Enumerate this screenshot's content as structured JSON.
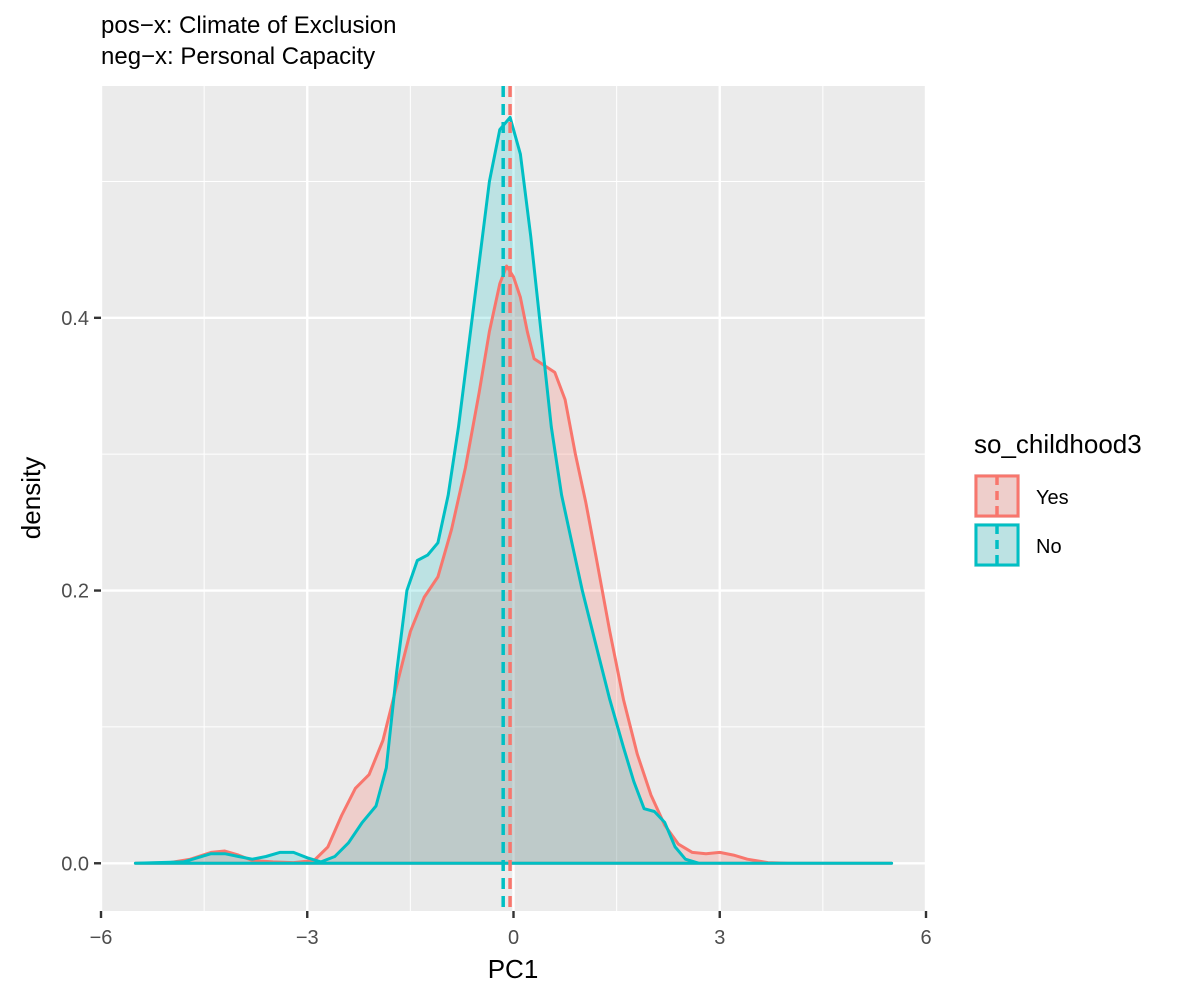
{
  "chart_data": {
    "type": "area",
    "title_lines": [
      "pos−x: Climate of Exclusion",
      "neg−x: Personal Capacity"
    ],
    "xlabel": "PC1",
    "ylabel": "density",
    "xlim": [
      -6,
      6
    ],
    "ylim": [
      -0.035,
      0.57
    ],
    "x_ticks": [
      -6,
      -3,
      0,
      3,
      6
    ],
    "x_tick_labels": [
      "−6",
      "−3",
      "0",
      "3",
      "6"
    ],
    "y_ticks": [
      0.0,
      0.2,
      0.4
    ],
    "y_tick_labels": [
      "0.0",
      "0.2",
      "0.4"
    ],
    "grid": true,
    "legend": {
      "title": "so_childhood3",
      "placement": "right",
      "entries": [
        "Yes",
        "No"
      ]
    },
    "series": [
      {
        "name": "Yes",
        "color": "#F8766D",
        "fill": "rgba(248,118,109,0.25)",
        "mean": -0.05,
        "points": [
          [
            -5.5,
            0
          ],
          [
            -5.0,
            0.0005
          ],
          [
            -4.7,
            0.003
          ],
          [
            -4.4,
            0.008
          ],
          [
            -4.2,
            0.009
          ],
          [
            -4.0,
            0.006
          ],
          [
            -3.8,
            0.002
          ],
          [
            -3.5,
            0.001
          ],
          [
            -3.2,
            0.0005
          ],
          [
            -2.9,
            0.002
          ],
          [
            -2.7,
            0.012
          ],
          [
            -2.5,
            0.035
          ],
          [
            -2.3,
            0.055
          ],
          [
            -2.1,
            0.065
          ],
          [
            -1.9,
            0.09
          ],
          [
            -1.7,
            0.13
          ],
          [
            -1.5,
            0.17
          ],
          [
            -1.3,
            0.195
          ],
          [
            -1.1,
            0.21
          ],
          [
            -0.9,
            0.245
          ],
          [
            -0.7,
            0.29
          ],
          [
            -0.5,
            0.345
          ],
          [
            -0.35,
            0.39
          ],
          [
            -0.2,
            0.425
          ],
          [
            -0.1,
            0.438
          ],
          [
            0.0,
            0.43
          ],
          [
            0.1,
            0.415
          ],
          [
            0.2,
            0.39
          ],
          [
            0.3,
            0.37
          ],
          [
            0.45,
            0.365
          ],
          [
            0.6,
            0.36
          ],
          [
            0.75,
            0.34
          ],
          [
            0.9,
            0.3
          ],
          [
            1.05,
            0.265
          ],
          [
            1.2,
            0.225
          ],
          [
            1.4,
            0.17
          ],
          [
            1.6,
            0.12
          ],
          [
            1.8,
            0.08
          ],
          [
            2.0,
            0.05
          ],
          [
            2.2,
            0.028
          ],
          [
            2.4,
            0.014
          ],
          [
            2.6,
            0.008
          ],
          [
            2.8,
            0.007
          ],
          [
            3.0,
            0.008
          ],
          [
            3.2,
            0.006
          ],
          [
            3.4,
            0.003
          ],
          [
            3.7,
            0.0005
          ],
          [
            4.0,
            0
          ],
          [
            5.5,
            0
          ]
        ]
      },
      {
        "name": "No",
        "color": "#00BFC4",
        "fill": "rgba(0,191,196,0.2)",
        "mean": -0.15,
        "points": [
          [
            -5.5,
            0
          ],
          [
            -4.8,
            0.001
          ],
          [
            -4.6,
            0.004
          ],
          [
            -4.4,
            0.007
          ],
          [
            -4.2,
            0.007
          ],
          [
            -4.0,
            0.005
          ],
          [
            -3.8,
            0.003
          ],
          [
            -3.6,
            0.005
          ],
          [
            -3.4,
            0.008
          ],
          [
            -3.2,
            0.008
          ],
          [
            -3.0,
            0.004
          ],
          [
            -2.8,
            0.001
          ],
          [
            -2.6,
            0.005
          ],
          [
            -2.4,
            0.015
          ],
          [
            -2.2,
            0.03
          ],
          [
            -2.0,
            0.042
          ],
          [
            -1.85,
            0.07
          ],
          [
            -1.7,
            0.14
          ],
          [
            -1.55,
            0.2
          ],
          [
            -1.4,
            0.222
          ],
          [
            -1.25,
            0.226
          ],
          [
            -1.1,
            0.235
          ],
          [
            -0.95,
            0.27
          ],
          [
            -0.8,
            0.32
          ],
          [
            -0.65,
            0.38
          ],
          [
            -0.5,
            0.44
          ],
          [
            -0.35,
            0.5
          ],
          [
            -0.2,
            0.538
          ],
          [
            -0.05,
            0.547
          ],
          [
            0.1,
            0.52
          ],
          [
            0.25,
            0.46
          ],
          [
            0.4,
            0.39
          ],
          [
            0.55,
            0.32
          ],
          [
            0.7,
            0.27
          ],
          [
            0.85,
            0.235
          ],
          [
            1.0,
            0.2
          ],
          [
            1.2,
            0.16
          ],
          [
            1.4,
            0.12
          ],
          [
            1.6,
            0.085
          ],
          [
            1.75,
            0.06
          ],
          [
            1.9,
            0.04
          ],
          [
            2.05,
            0.038
          ],
          [
            2.2,
            0.03
          ],
          [
            2.35,
            0.012
          ],
          [
            2.5,
            0.003
          ],
          [
            2.7,
            0
          ],
          [
            5.5,
            0
          ]
        ]
      }
    ]
  }
}
